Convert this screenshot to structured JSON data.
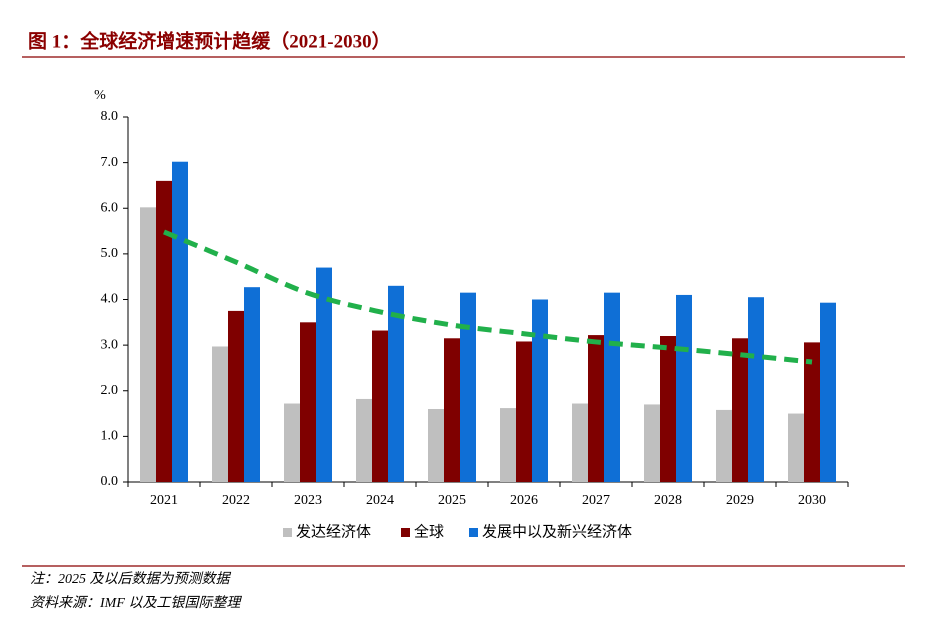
{
  "chart_data": {
    "type": "bar",
    "title": "图 1：全球经济增速预计趋缓（2021-2030）",
    "y_unit": "%",
    "categories": [
      "2021",
      "2022",
      "2023",
      "2024",
      "2025",
      "2026",
      "2027",
      "2028",
      "2029",
      "2030"
    ],
    "series": [
      {
        "name": "发达经济体",
        "color": "#bfbfbf",
        "values": [
          6.02,
          2.97,
          1.72,
          1.82,
          1.6,
          1.62,
          1.72,
          1.7,
          1.58,
          1.5
        ]
      },
      {
        "name": "全球",
        "color": "#7f0000",
        "values": [
          6.6,
          3.75,
          3.5,
          3.32,
          3.15,
          3.08,
          3.22,
          3.2,
          3.15,
          3.06
        ]
      },
      {
        "name": "发展中以及新兴经济体",
        "color": "#0f6fd6",
        "values": [
          7.02,
          4.27,
          4.7,
          4.3,
          4.15,
          4.0,
          4.15,
          4.1,
          4.05,
          3.93
        ]
      },
      {
        "type": "line",
        "dashed": true,
        "color": "#21b04b",
        "values": [
          5.48,
          4.82,
          4.14,
          3.73,
          3.44,
          3.25,
          3.07,
          2.94,
          2.79,
          2.63
        ]
      }
    ],
    "ylim": [
      0,
      8
    ],
    "yticks": [
      {
        "value": 0,
        "label": "0.0"
      },
      {
        "value": 1,
        "label": "1.0"
      },
      {
        "value": 2,
        "label": "2.0"
      },
      {
        "value": 3,
        "label": "3.0"
      },
      {
        "value": 4,
        "label": "4.0"
      },
      {
        "value": 5,
        "label": "5.0"
      },
      {
        "value": 6,
        "label": "6.0"
      },
      {
        "value": 7,
        "label": "7.0"
      },
      {
        "value": 8,
        "label": "8.0"
      }
    ],
    "grid": false,
    "legend": "bottom",
    "notes": [
      "注：2025 及以后数据为预测数据",
      "资料来源：IMF 以及工银国际整理"
    ]
  }
}
